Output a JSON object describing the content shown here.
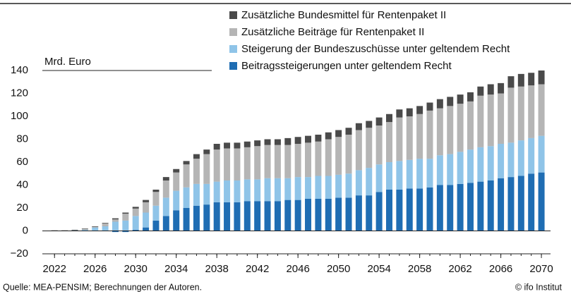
{
  "chart_data": {
    "type": "bar",
    "stacked": true,
    "y_axis_label": "Mrd. Euro",
    "source": "Quelle: MEA-PENSIM; Berechnungen der Autoren.",
    "credit": "© ifo Institut",
    "x": [
      2022,
      2023,
      2024,
      2025,
      2026,
      2027,
      2028,
      2029,
      2030,
      2031,
      2032,
      2033,
      2034,
      2035,
      2036,
      2037,
      2038,
      2039,
      2040,
      2041,
      2042,
      2043,
      2044,
      2045,
      2046,
      2047,
      2048,
      2049,
      2050,
      2051,
      2052,
      2053,
      2054,
      2055,
      2056,
      2057,
      2058,
      2059,
      2060,
      2061,
      2062,
      2063,
      2064,
      2065,
      2066,
      2067,
      2068,
      2069,
      2070
    ],
    "xlim": [
      2020.8,
      2070.9
    ],
    "xticks": [
      2022,
      2026,
      2030,
      2034,
      2038,
      2042,
      2046,
      2050,
      2054,
      2058,
      2062,
      2066,
      2070
    ],
    "ylim": [
      -20,
      140
    ],
    "yticks": [
      {
        "value": -20,
        "label": "−20"
      },
      0,
      20,
      40,
      60,
      80,
      100,
      120,
      140
    ],
    "series": [
      {
        "name": "Beitragssteigerungen unter geltendem Recht",
        "color": "#1f6db3",
        "values": [
          0,
          0,
          0,
          0,
          0,
          0,
          -1,
          -1,
          1,
          3,
          9,
          13,
          18,
          20,
          22,
          23,
          25,
          25,
          25,
          26,
          26,
          26,
          26,
          27,
          27,
          28,
          28,
          28,
          29,
          29,
          31,
          31,
          34,
          36,
          36,
          37,
          37,
          38,
          40,
          40,
          41,
          42,
          43,
          44,
          46,
          47,
          48,
          50,
          51
        ]
      },
      {
        "name": "Steigerung der Bundeszuschüsse unter geltendem Recht",
        "color": "#8fc4e8",
        "values": [
          0,
          0,
          0.5,
          1,
          3,
          4,
          8,
          9,
          12,
          13,
          13,
          16,
          17,
          18,
          19,
          18,
          18,
          19,
          19,
          19,
          19,
          20,
          20,
          19,
          20,
          19,
          20,
          20,
          20,
          21,
          22,
          24,
          24,
          24,
          25,
          25,
          26,
          25,
          26,
          27,
          28,
          29,
          30,
          30,
          30,
          30,
          31,
          31,
          32
        ]
      },
      {
        "name": "Zusätzliche Beiträge für Rentenpaket II",
        "color": "#b5b5b5",
        "values": [
          0,
          0,
          0,
          0.5,
          0.5,
          2.5,
          2,
          6,
          6.5,
          9,
          12,
          15,
          16,
          20,
          22,
          26,
          28,
          28,
          28,
          28,
          29,
          29,
          29,
          29,
          29,
          30,
          30,
          32,
          33,
          34,
          35,
          35,
          34,
          35,
          38,
          38,
          39,
          42,
          41,
          42,
          42,
          42,
          45,
          45,
          44,
          48,
          47,
          46,
          45
        ]
      },
      {
        "name": "Zusätzliche Bundesmittel für Rentenpaket II",
        "color": "#4a4a4a",
        "values": [
          0.5,
          0.5,
          0.5,
          0.5,
          0.5,
          0.5,
          1,
          1,
          1.5,
          2,
          2,
          3,
          3,
          3,
          4,
          4,
          5,
          5,
          5,
          5,
          5,
          5,
          5,
          6,
          6,
          6,
          6,
          6,
          6,
          6,
          6,
          6,
          7,
          7,
          7,
          7,
          7,
          7,
          8,
          8,
          8,
          8,
          8,
          9,
          9,
          10,
          11,
          11,
          12
        ]
      }
    ]
  }
}
